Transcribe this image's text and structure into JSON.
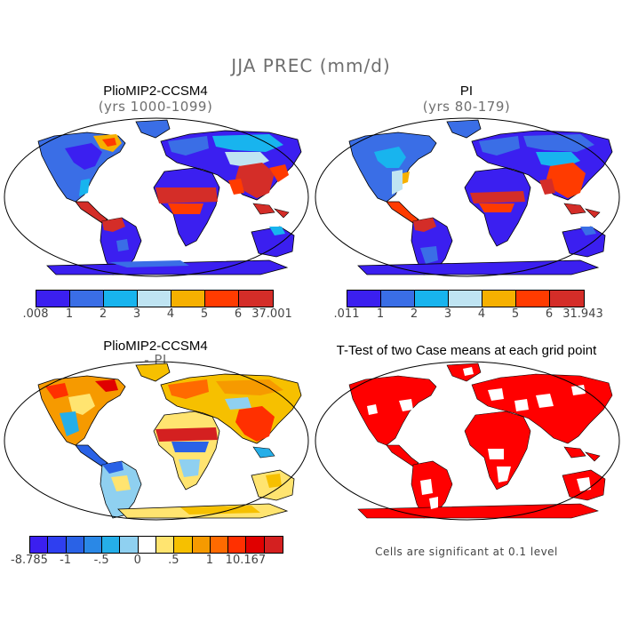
{
  "main_title": "JJA PREC (mm/d)",
  "panels": {
    "top_left": {
      "title": "PlioMIP2-CCSM4",
      "subtitle": "(yrs 1000-1099)"
    },
    "top_right": {
      "title": "PI",
      "subtitle": "(yrs 80-179)"
    },
    "bottom_left": {
      "title": "PlioMIP2-CCSM4",
      "subtitle": "- PI"
    },
    "bottom_right": {
      "title": "T-Test of two Case means at each grid point",
      "note": "Cells are significant at 0.1 level"
    }
  },
  "colorbars": {
    "top_left": {
      "colors": [
        "#3b1ff0",
        "#3a6ee6",
        "#18b4ee",
        "#bfe4f2",
        "#f6b000",
        "#ff3b00",
        "#d42d28"
      ],
      "labels": [
        ".008",
        "1",
        "2",
        "3",
        "4",
        "5",
        "6",
        "37.001"
      ]
    },
    "top_right": {
      "colors": [
        "#3b1ff0",
        "#3a6ee6",
        "#18b4ee",
        "#bfe4f2",
        "#f6b000",
        "#ff3b00",
        "#d42d28"
      ],
      "labels": [
        ".011",
        "1",
        "2",
        "3",
        "4",
        "5",
        "6",
        "31.943"
      ]
    },
    "bottom_left": {
      "colors": [
        "#3b1ff0",
        "#2f3ff0",
        "#2a62e6",
        "#2a88e6",
        "#25aee8",
        "#8fd0f0",
        "#ffffff",
        "#ffe470",
        "#f6c000",
        "#f69a00",
        "#ff6a00",
        "#ff3000",
        "#e00000",
        "#d42020"
      ],
      "labels": [
        "-8.785",
        "-1",
        "-.5",
        "0",
        ".5",
        "1",
        "10.167"
      ]
    }
  },
  "map_colors": {
    "ocean": "#ffffff",
    "outline": "#000000",
    "significant": "#ff0000"
  }
}
